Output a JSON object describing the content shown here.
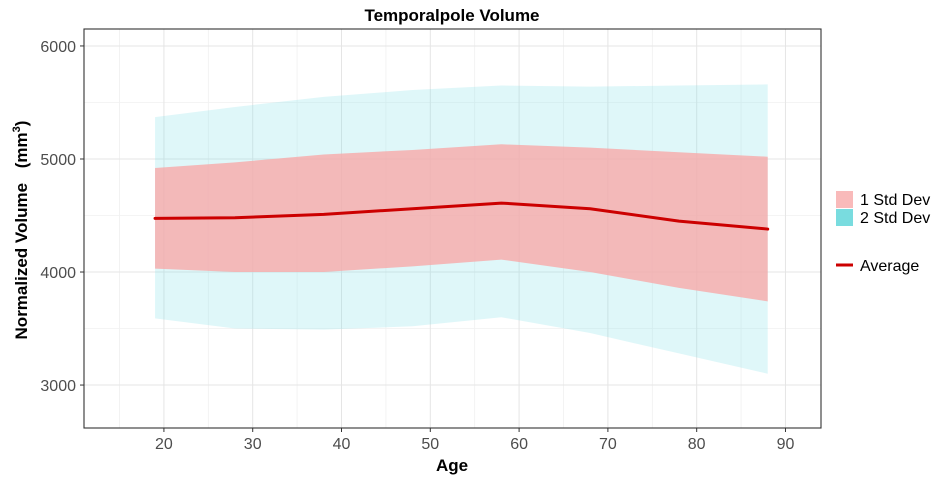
{
  "chart_data": {
    "type": "area",
    "title": "Temporalpole Volume",
    "xlabel": "Age",
    "ylabel": "Normalized Volume",
    "ylabel_unit_base": "mm",
    "ylabel_unit_exp": "3",
    "xlim": [
      11,
      94
    ],
    "ylim": [
      2620,
      6150
    ],
    "x_ticks": [
      20,
      30,
      40,
      50,
      60,
      70,
      80,
      90
    ],
    "y_ticks": [
      3000,
      4000,
      5000,
      6000
    ],
    "grid": true,
    "legend_position": "right",
    "x": [
      19,
      28,
      38,
      48,
      58,
      68,
      78,
      88
    ],
    "series": [
      {
        "name": "2 Std Dev",
        "kind": "band",
        "color": "#7fdfe6",
        "lower": [
          3590,
          3500,
          3490,
          3520,
          3600,
          3460,
          3280,
          3100
        ],
        "upper": [
          5370,
          5460,
          5550,
          5610,
          5650,
          5640,
          5650,
          5660
        ]
      },
      {
        "name": "1 Std Dev",
        "kind": "band",
        "color": "#f8a9a9",
        "lower": [
          4030,
          4000,
          4000,
          4050,
          4110,
          4000,
          3860,
          3740
        ],
        "upper": [
          4920,
          4970,
          5040,
          5080,
          5130,
          5100,
          5060,
          5020
        ]
      },
      {
        "name": "Average",
        "kind": "line",
        "color": "#cc0000",
        "values": [
          4475,
          4480,
          4510,
          4560,
          4610,
          4560,
          4450,
          4380
        ]
      }
    ]
  }
}
